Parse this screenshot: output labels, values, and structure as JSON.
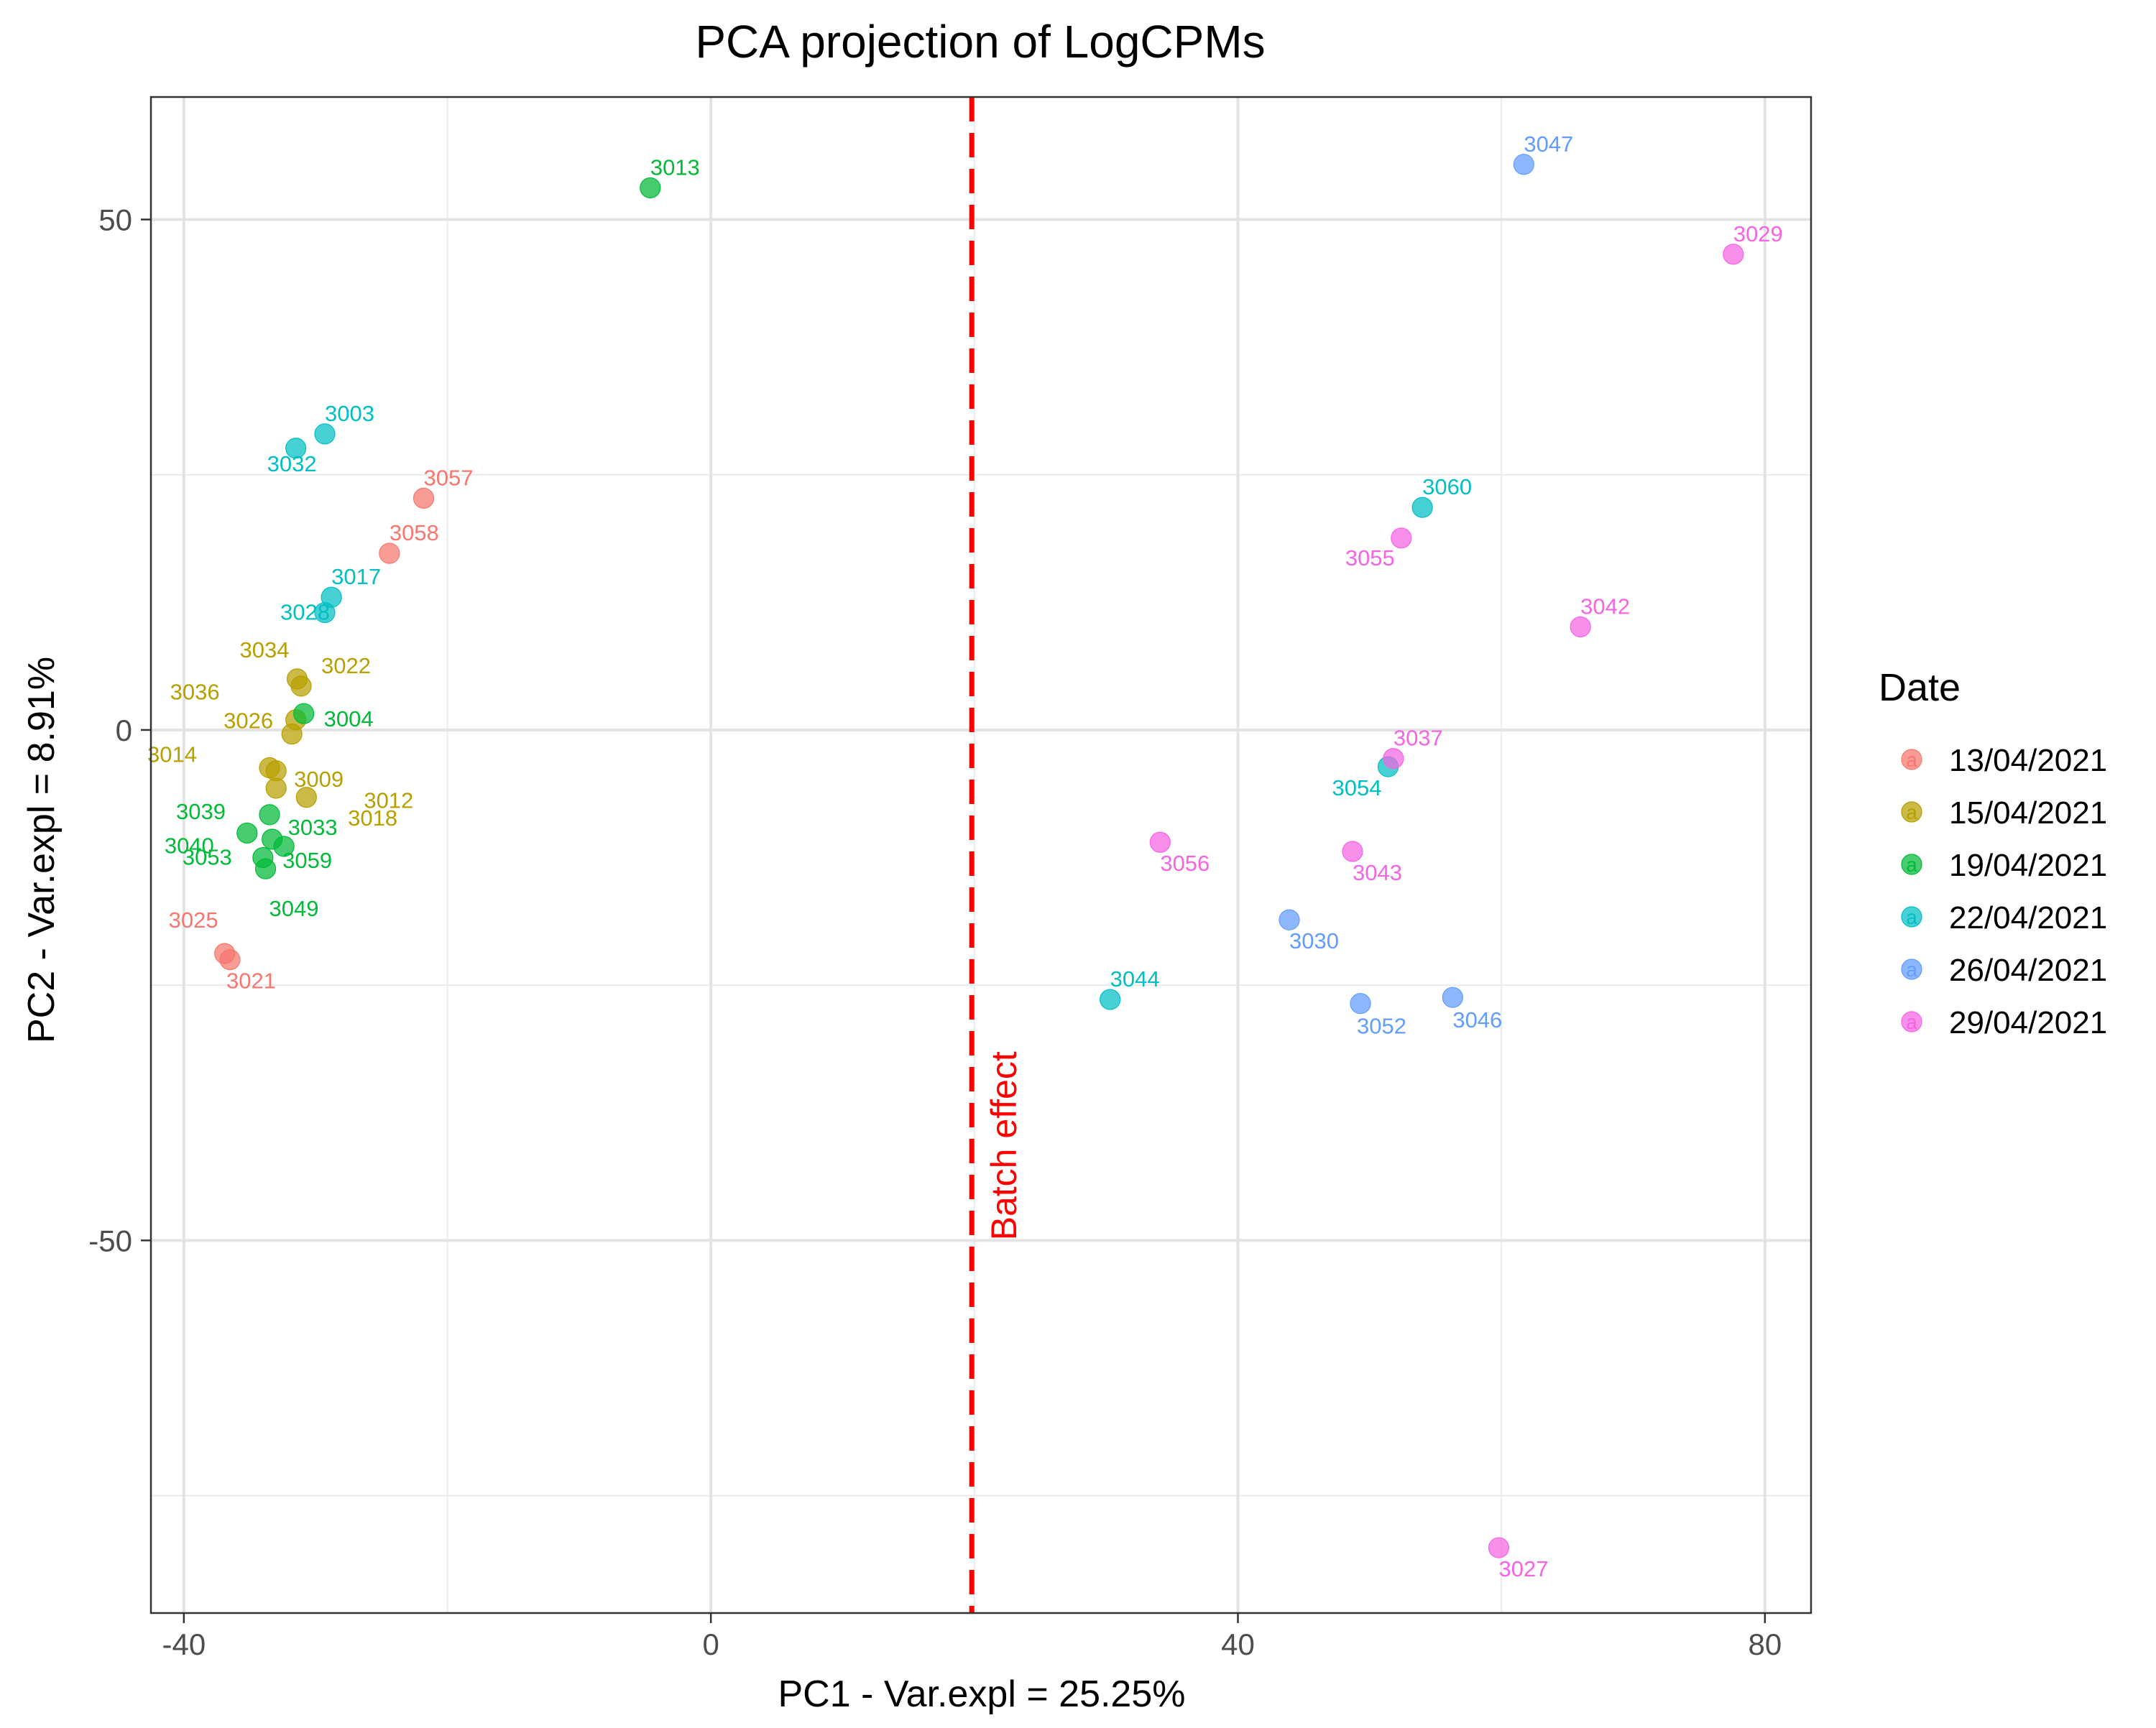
{
  "chart_data": {
    "type": "scatter",
    "title": "PCA projection of LogCPMs",
    "xlabel": "PC1 - Var.expl = 25.25%",
    "ylabel": "PC2 - Var.expl = 8.91%",
    "xlim": [
      -42.5,
      83.5
    ],
    "ylim": [
      -86.5,
      62
    ],
    "xticks": [
      -40,
      0,
      40,
      80
    ],
    "xtick_labels": [
      "-40",
      "0",
      "40",
      "80"
    ],
    "yticks": [
      -50,
      0,
      50
    ],
    "ytick_labels": [
      "-50",
      "0",
      "50"
    ],
    "grid": true,
    "legend": {
      "title": "Date",
      "placement": "right",
      "key_glyph": "a"
    },
    "series": [
      {
        "name": "13/04/2021",
        "color": "#F8766D",
        "points": [
          {
            "x": -21.8,
            "y": 22.7,
            "label": "3057"
          },
          {
            "x": -24.4,
            "y": 17.3,
            "label": "3058"
          },
          {
            "x": -36.9,
            "y": -21.9,
            "label": "3025"
          },
          {
            "x": -36.5,
            "y": -22.5,
            "label": "3021"
          }
        ]
      },
      {
        "name": "15/04/2021",
        "color": "#B79F00",
        "points": [
          {
            "x": -31.4,
            "y": 5.0,
            "label": "3034"
          },
          {
            "x": -31.1,
            "y": 4.3,
            "label": "3022"
          },
          {
            "x": -31.5,
            "y": 1.0,
            "label": "3036"
          },
          {
            "x": -31.8,
            "y": -0.4,
            "label": "3026"
          },
          {
            "x": -33.5,
            "y": -3.7,
            "label": "3014"
          },
          {
            "x": -33.0,
            "y": -4.0,
            "label": "3009"
          },
          {
            "x": -33.0,
            "y": -5.7,
            "label": "3018"
          },
          {
            "x": -30.7,
            "y": -6.6,
            "label": "3012"
          }
        ]
      },
      {
        "name": "19/04/2021",
        "color": "#00BA38",
        "points": [
          {
            "x": -4.6,
            "y": 53.1,
            "label": "3013"
          },
          {
            "x": -30.9,
            "y": 1.6,
            "label": "3004"
          },
          {
            "x": -33.5,
            "y": -8.3,
            "label": "3039"
          },
          {
            "x": -35.2,
            "y": -10.1,
            "label": "3040"
          },
          {
            "x": -33.3,
            "y": -10.7,
            "label": "3033"
          },
          {
            "x": -32.4,
            "y": -11.4,
            "label": "3059"
          },
          {
            "x": -34.0,
            "y": -12.5,
            "label": "3053"
          },
          {
            "x": -33.8,
            "y": -13.6,
            "label": "3049"
          }
        ]
      },
      {
        "name": "22/04/2021",
        "color": "#00BFC4",
        "points": [
          {
            "x": -29.3,
            "y": 29.0,
            "label": "3003"
          },
          {
            "x": -31.5,
            "y": 27.6,
            "label": "3032"
          },
          {
            "x": -28.8,
            "y": 13.0,
            "label": "3017"
          },
          {
            "x": -29.3,
            "y": 11.5,
            "label": "3028"
          },
          {
            "x": 54.0,
            "y": 21.8,
            "label": "3060"
          },
          {
            "x": 51.4,
            "y": -3.6,
            "label": "3054"
          },
          {
            "x": 30.3,
            "y": -26.4,
            "label": "3044"
          }
        ]
      },
      {
        "name": "26/04/2021",
        "color": "#619CFF",
        "points": [
          {
            "x": 61.7,
            "y": 55.4,
            "label": "3047"
          },
          {
            "x": 43.9,
            "y": -18.6,
            "label": "3030"
          },
          {
            "x": 49.3,
            "y": -26.8,
            "label": "3052"
          },
          {
            "x": 56.3,
            "y": -26.2,
            "label": "3046"
          }
        ]
      },
      {
        "name": "29/04/2021",
        "color": "#F564E3",
        "points": [
          {
            "x": 77.6,
            "y": 46.6,
            "label": "3029"
          },
          {
            "x": 52.4,
            "y": 18.8,
            "label": "3055"
          },
          {
            "x": 66.0,
            "y": 10.1,
            "label": "3042"
          },
          {
            "x": 51.8,
            "y": -2.8,
            "label": "3037"
          },
          {
            "x": 34.1,
            "y": -11.0,
            "label": "3056"
          },
          {
            "x": 48.7,
            "y": -11.9,
            "label": "3043"
          },
          {
            "x": 59.8,
            "y": -80.1,
            "label": "3027"
          }
        ]
      }
    ],
    "annotations": [
      {
        "type": "vline",
        "x": 19.8,
        "color": "#FF0000",
        "style": "dashed",
        "text": "Batch effect"
      }
    ]
  }
}
